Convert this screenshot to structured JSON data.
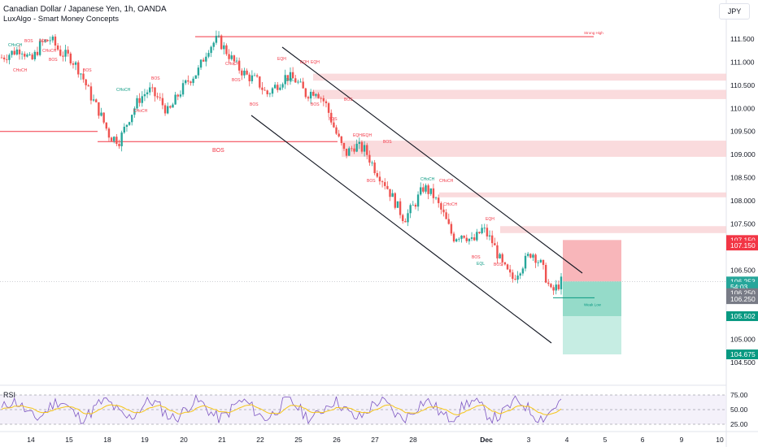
{
  "header": {
    "title": "Canadian Dollar / Japanese Yen, 1h, OANDA",
    "indicator": "LuxAlgo - Smart Money Concepts",
    "currency_button": "JPY"
  },
  "rsi": {
    "label": "RSI",
    "ticks": [
      "75.00",
      "50.00",
      "25.00"
    ]
  },
  "colors": {
    "bull": "#26a69a",
    "bear": "#ef5350",
    "zone": "#f8cfd2",
    "structure_red": "#f23645",
    "structure_green": "#089981",
    "stop_zone": "#f7a9ae",
    "target_zone": "#8fd9c6",
    "rsi_line": "#7e57c2",
    "rsi_ma": "#f5c518"
  },
  "chart_data": {
    "type": "candlestick",
    "title": "Canadian Dollar / Japanese Yen, 1h, OANDA",
    "y_axis_ticks": [
      "111.500",
      "111.000",
      "110.500",
      "110.000",
      "109.500",
      "109.000",
      "108.500",
      "108.000",
      "107.500",
      "107.000",
      "106.500",
      "105.000",
      "104.500"
    ],
    "x_axis_ticks": [
      "14",
      "15",
      "18",
      "19",
      "20",
      "21",
      "22",
      "25",
      "26",
      "27",
      "28",
      "Dec",
      "3",
      "4",
      "5",
      "6",
      "9",
      "10"
    ],
    "ylim": [
      104.4,
      111.8
    ],
    "price_badges": [
      {
        "text": "107.150",
        "price": 107.15,
        "color": "#f23645"
      },
      {
        "text": "107.150",
        "price": 107.03,
        "color": "#f23645"
      },
      {
        "text": "106.253",
        "price": 106.253,
        "color": "#26a69a"
      },
      {
        "text": "54:03",
        "price": 106.14,
        "color": "#26a69a"
      },
      {
        "text": "106.250",
        "price": 106.0,
        "color": "#787b86"
      },
      {
        "text": "106.250",
        "price": 105.87,
        "color": "#787b86"
      },
      {
        "text": "105.502",
        "price": 105.502,
        "color": "#089981"
      },
      {
        "text": "104.675",
        "price": 104.675,
        "color": "#089981"
      }
    ],
    "levels": [
      {
        "label": "Strong High",
        "price": 111.55,
        "color": "#f23645"
      },
      {
        "label": "Weak Low",
        "price": 105.9,
        "color": "#089981"
      },
      {
        "label": "BOS",
        "price": 109.5,
        "color": "#f23645"
      },
      {
        "label": "BOS",
        "price": 109.3,
        "color": "#f23645"
      }
    ],
    "supply_zones": [
      [
        110.6,
        110.75
      ],
      [
        110.2,
        110.4
      ],
      [
        108.95,
        109.3
      ],
      [
        108.1,
        108.18
      ],
      [
        107.3,
        107.45
      ]
    ],
    "position": {
      "entry": 106.253,
      "stop": 107.15,
      "target": 104.675
    },
    "structure_labels": [
      "CHoCH",
      "BOS",
      "BOS",
      "CHoCH",
      "BOS",
      "CHoCH",
      "BOS",
      "CHoCH",
      "BOS",
      "EQH",
      "EQH",
      "EQH",
      "EQL",
      "BOS",
      "BOS",
      "BOS",
      "BOS",
      "EQH/EQH",
      "BOS",
      "CHoCH",
      "CHoCH",
      "BOS",
      "CHoCH",
      "BOS",
      "EQH",
      "EQL",
      "BOS",
      "BOS",
      "CHoCH",
      "CHoCH"
    ],
    "series": [
      {
        "name": "CADJPY",
        "close_path": [
          111.1,
          111.2,
          111.3,
          111.0,
          111.4,
          111.5,
          111.2,
          111.1,
          110.8,
          110.3,
          109.9,
          109.4,
          109.3,
          109.8,
          110.2,
          110.4,
          110.2,
          109.9,
          110.3,
          110.6,
          110.8,
          111.3,
          111.5,
          111.2,
          110.9,
          110.7,
          110.6,
          110.3,
          110.5,
          110.7,
          110.6,
          110.3,
          110.4,
          110.1,
          109.5,
          109.0,
          109.2,
          109.1,
          108.7,
          108.4,
          108.0,
          107.6,
          107.9,
          108.3,
          108.1,
          107.7,
          107.2,
          107.3,
          107.1,
          107.4,
          107.1,
          106.6,
          106.3,
          106.6,
          106.9,
          106.6,
          106.0,
          106.25
        ]
      }
    ]
  }
}
